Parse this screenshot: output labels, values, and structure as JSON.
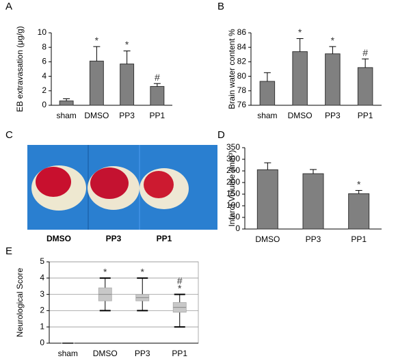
{
  "chart_data": [
    {
      "type": "bar",
      "panel": "A",
      "ylabel": "EB extravasation (μg/g)",
      "categories": [
        "sham",
        "DMSO",
        "PP3",
        "PP1"
      ],
      "values": [
        0.6,
        6.1,
        5.7,
        2.6
      ],
      "errors": [
        0.3,
        2.0,
        1.8,
        0.4
      ],
      "annotations": [
        [],
        [
          "*"
        ],
        [
          "*"
        ],
        [
          "#"
        ]
      ],
      "color": "#808080",
      "ylim": [
        0,
        10
      ],
      "yticks": [
        0,
        2,
        4,
        6,
        8,
        10
      ]
    },
    {
      "type": "bar",
      "panel": "B",
      "ylabel": "Brain water content %",
      "categories": [
        "sham",
        "DMSO",
        "PP3",
        "PP1"
      ],
      "values": [
        79.3,
        83.4,
        83.1,
        81.2
      ],
      "errors": [
        1.2,
        1.8,
        1.0,
        1.2
      ],
      "annotations": [
        [],
        [
          "*"
        ],
        [
          "*"
        ],
        [
          "#"
        ]
      ],
      "color": "#808080",
      "ylim": [
        76,
        86
      ],
      "yticks": [
        76,
        78,
        80,
        82,
        84,
        86
      ]
    },
    {
      "type": "image",
      "panel": "C",
      "labels": [
        "DMSO",
        "PP3",
        "PP1"
      ]
    },
    {
      "type": "bar",
      "panel": "D",
      "ylabel": "Infarct Volume (mm³)",
      "categories": [
        "DMSO",
        "PP3",
        "PP1"
      ],
      "values": [
        255,
        238,
        152
      ],
      "errors": [
        30,
        18,
        14
      ],
      "annotations": [
        [],
        [],
        [
          "*"
        ]
      ],
      "color": "#808080",
      "ylim": [
        0,
        350
      ],
      "yticks": [
        0,
        50,
        100,
        150,
        200,
        250,
        300,
        350
      ]
    },
    {
      "type": "box",
      "panel": "E",
      "ylabel": "Neurological Score",
      "categories": [
        "sham",
        "DMSO",
        "PP3",
        "PP1"
      ],
      "boxes": [
        {
          "min": 0,
          "q1": 0,
          "median": 0,
          "q3": 0,
          "max": 0
        },
        {
          "min": 2,
          "q1": 2.6,
          "median": 3,
          "q3": 3.4,
          "max": 4
        },
        {
          "min": 2,
          "q1": 2.6,
          "median": 2.8,
          "q3": 3,
          "max": 4
        },
        {
          "min": 1,
          "q1": 1.9,
          "median": 2.2,
          "q3": 2.5,
          "max": 3
        }
      ],
      "annotations": [
        [],
        [
          "*"
        ],
        [
          "*"
        ],
        [
          "#",
          "*"
        ]
      ],
      "color": "#c8c8c8",
      "ylim": [
        0,
        5
      ],
      "yticks": [
        0,
        1,
        2,
        3,
        4,
        5
      ],
      "grid": true
    }
  ]
}
